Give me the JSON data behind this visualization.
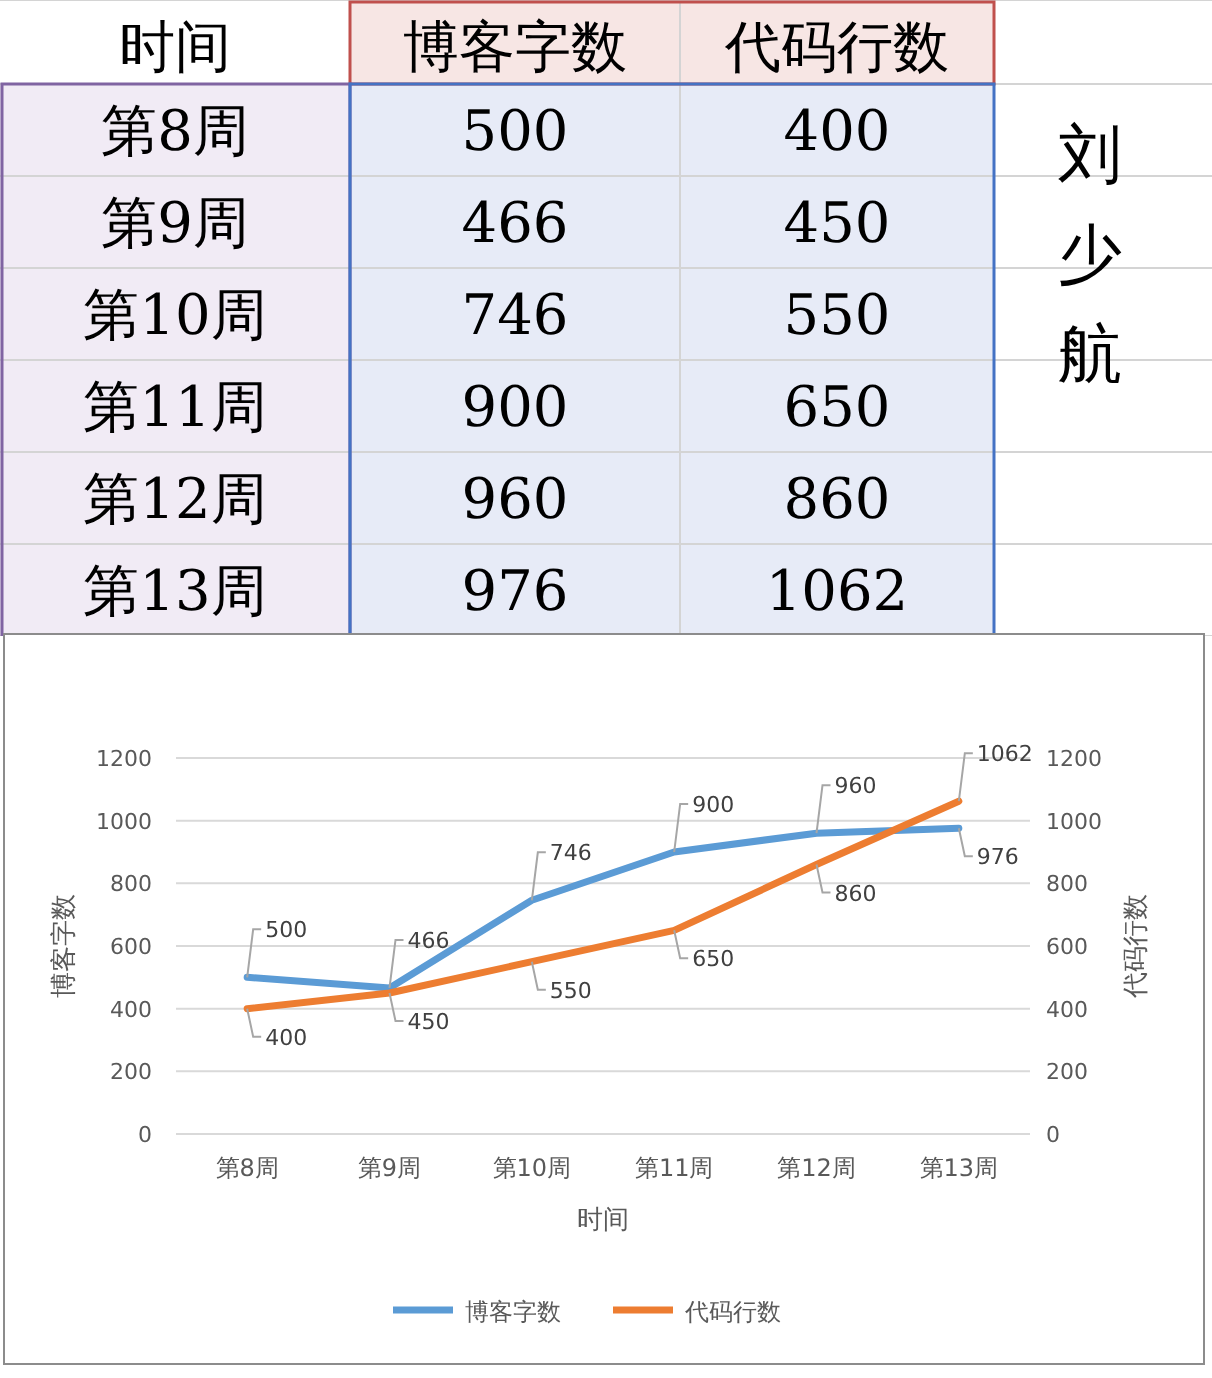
{
  "chart_data": [
    {
      "type": "other",
      "annotations": [
        "时间",
        "博客字数",
        "代码行数",
        "第8周",
        "500",
        "400",
        "第9周",
        "466",
        "450",
        "第10周",
        "746",
        "550",
        "第11周",
        "900",
        "650",
        "第12周",
        "960",
        "860",
        "第13周",
        "976",
        "1062",
        "刘少航"
      ]
    },
    {
      "type": "line",
      "categories": [
        "第8周",
        "第9周",
        "第10周",
        "第11周",
        "第12周",
        "第13周"
      ],
      "xlabel": "时间",
      "ylabel": "博客字数",
      "y2label": "代码行数",
      "series": [
        {
          "name": "博客字数",
          "color": "#5b9bd5",
          "values": [
            500,
            466,
            746,
            900,
            960,
            976
          ]
        },
        {
          "name": "代码行数",
          "color": "#ed7d31",
          "values": [
            400,
            450,
            550,
            650,
            860,
            1062
          ],
          "axis": "y2"
        }
      ],
      "ylim": [
        0,
        1200
      ],
      "yticks": [
        0,
        200,
        400,
        600,
        800,
        1000,
        1200
      ],
      "y2lim": [
        0,
        1200
      ],
      "y2ticks": [
        0,
        200,
        400,
        600,
        800,
        1000,
        1200
      ],
      "grid": "y",
      "legend": "bottom",
      "marker": "none",
      "line_style": "solid",
      "data_labels": true
    }
  ]
}
